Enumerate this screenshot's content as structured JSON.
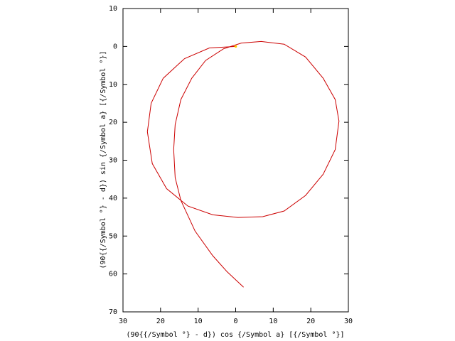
{
  "chart_data": {
    "type": "line",
    "x_label": "(90{{/Symbol °} - d}) cos {/Symbol a} [{/Symbol °}]",
    "y_label": "(90{{/Symbol °} - d}) sin {/Symbol a} [{/Symbol °}]",
    "xlim": [
      -30,
      30
    ],
    "ylim": [
      70,
      -10
    ],
    "xticks": [
      {
        "value": -30,
        "label": "30"
      },
      {
        "value": -20,
        "label": "20"
      },
      {
        "value": -10,
        "label": "10"
      },
      0,
      10,
      20,
      30
    ],
    "yticks": [
      {
        "value": -10,
        "label": "10"
      },
      0,
      10,
      20,
      30,
      40,
      50,
      60,
      70
    ],
    "series": [
      {
        "color": "#cc0000",
        "x": [
          2.1,
          -2.3,
          -6.1,
          -10.8,
          -14.6,
          -16.1,
          -16.5,
          -16.1,
          -14.6,
          -11.7,
          -8.0,
          -3.2,
          1.5,
          6.8,
          12.9,
          18.6,
          23.3,
          26.5,
          27.5,
          26.5,
          23.3,
          18.6,
          12.9,
          7.2,
          0.6,
          -6.1,
          -12.7,
          -18.4,
          -22.2,
          -23.5,
          -22.5,
          -19.3,
          -13.6,
          -7.0,
          0
        ],
        "values": [
          63.5,
          59.4,
          55.2,
          48.7,
          40.6,
          34.6,
          27.2,
          20.6,
          14.0,
          8.4,
          3.7,
          0.6,
          -0.9,
          -1.3,
          -0.6,
          2.8,
          8.4,
          14.0,
          19.7,
          27.2,
          33.7,
          39.3,
          43.4,
          44.9,
          45.1,
          44.4,
          42.1,
          37.5,
          30.9,
          22.5,
          15.0,
          8.4,
          3.2,
          0.4,
          0
        ]
      }
    ],
    "marker": {
      "x": 0,
      "y": 0,
      "color": "#ffcc00"
    }
  }
}
